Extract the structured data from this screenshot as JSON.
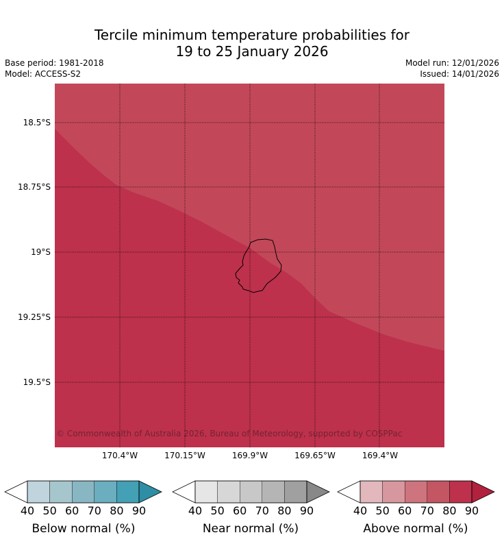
{
  "header": {
    "title_line1": "Tercile minimum temperature probabilities for",
    "title_line2": "19 to 25 January 2026",
    "base_period": "Base period: 1981-2018",
    "model": "Model: ACCESS-S2",
    "model_run": "Model run: 12/01/2026",
    "issued": "Issued: 14/01/2026"
  },
  "map": {
    "lat_labels": [
      "18.5°S",
      "18.75°S",
      "19°S",
      "19.25°S",
      "19.5°S"
    ],
    "lon_labels": [
      "170.4°W",
      "170.15°W",
      "169.9°W",
      "169.65°W",
      "169.4°W"
    ],
    "lat_range": [
      "18.35°S",
      "19.75°S"
    ],
    "lon_range": [
      "170.65°W",
      "169.15°W"
    ],
    "gridlines": "dotted",
    "copyright": "© Commonwealth of Australia 2026, Bureau of Meteorology, supported by COSPPac",
    "field": "above normal",
    "colors": {
      "above_80": "#bd314c",
      "above_70": "#c24859",
      "coast": "#000000"
    }
  },
  "colorbars": [
    {
      "label": "Below normal (%)",
      "ticks": [
        "40",
        "50",
        "60",
        "70",
        "80",
        "90"
      ],
      "colors": [
        "#bfd4dc",
        "#a6c6cd",
        "#89b6c3",
        "#6aaebf",
        "#44a0b4",
        "#2e8ea5"
      ]
    },
    {
      "label": "Near normal (%)",
      "ticks": [
        "40",
        "50",
        "60",
        "70",
        "80",
        "90"
      ],
      "colors": [
        "#e6e6e6",
        "#d7d7d7",
        "#c8c8c8",
        "#b5b5b5",
        "#a0a0a0",
        "#888888"
      ]
    },
    {
      "label": "Above normal (%)",
      "ticks": [
        "40",
        "50",
        "60",
        "70",
        "80",
        "90"
      ],
      "colors": [
        "#e2b8bd",
        "#d7979f",
        "#ce747e",
        "#c45563",
        "#bd314c",
        "#b2213d"
      ]
    }
  ]
}
